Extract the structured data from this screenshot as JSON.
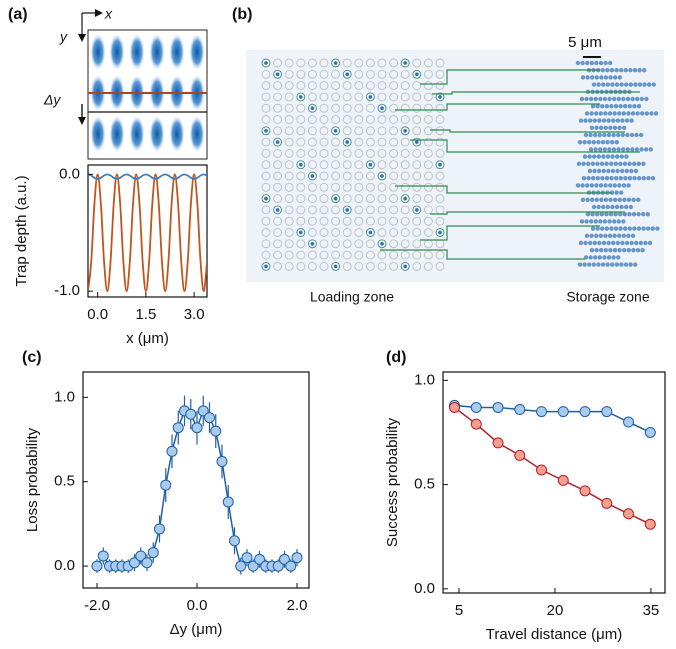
{
  "panels": {
    "a": {
      "label": "(a)",
      "axis_x": "x",
      "axis_y": "y",
      "delta_y": "Δy"
    },
    "b": {
      "label": "(b)",
      "scale_bar": "5 μm",
      "loading_zone": "Loading zone",
      "storage_zone": "Storage zone"
    }
  },
  "chart_data": [
    {
      "type": "line",
      "smooth": true,
      "xlabel": "x (μm)",
      "ylabel": "Trap depth (a.u.)",
      "x": [
        -0.3,
        -0.2,
        -0.1,
        0,
        0.1,
        0.2,
        0.3,
        0.4,
        0.5,
        0.6,
        0.7,
        0.8,
        0.9,
        1.0,
        1.1,
        1.2,
        1.3,
        1.4,
        1.5,
        1.6,
        1.7,
        1.8,
        1.9,
        2.0,
        2.1,
        2.2,
        2.3,
        2.4,
        2.5,
        2.6,
        2.7,
        2.8,
        2.9,
        3.0,
        3.1,
        3.2,
        3.3,
        3.4
      ],
      "series": [
        {
          "color": "#c2541a",
          "values": [
            -1,
            -0.75,
            -0.25,
            0,
            -0.25,
            -0.75,
            -1,
            -0.75,
            -0.25,
            0,
            -0.25,
            -0.75,
            -1,
            -0.75,
            -0.25,
            0,
            -0.25,
            -0.75,
            -1,
            -0.75,
            -0.25,
            0,
            -0.25,
            -0.75,
            -1,
            -0.75,
            -0.25,
            0,
            -0.25,
            -0.75,
            -1,
            -0.75,
            -0.25,
            0,
            -0.25,
            -0.75,
            -1,
            -0.75
          ]
        },
        {
          "color": "#3a7dc0",
          "values": [
            0,
            -0.01,
            -0.03,
            -0.04,
            -0.03,
            -0.01,
            0,
            -0.01,
            -0.03,
            -0.04,
            -0.03,
            -0.01,
            0,
            -0.01,
            -0.03,
            -0.04,
            -0.03,
            -0.01,
            0,
            -0.01,
            -0.03,
            -0.04,
            -0.03,
            -0.01,
            0,
            -0.01,
            -0.03,
            -0.04,
            -0.03,
            -0.01,
            0,
            -0.01,
            -0.03,
            -0.04,
            -0.03,
            -0.01,
            0,
            -0.01
          ]
        }
      ],
      "xlim": [
        -0.3,
        3.4
      ],
      "ylim": [
        -1.05,
        0.08
      ],
      "xticks": [
        {
          "value": 0,
          "label": "0.0"
        },
        {
          "value": 1.5,
          "label": "1.5"
        },
        {
          "value": 3,
          "label": "3.0"
        }
      ],
      "yticks": [
        {
          "value": -1,
          "label": "-1.0"
        },
        {
          "value": 0,
          "label": "0.0"
        }
      ]
    },
    {
      "type": "scatter",
      "panel_label": "(c)",
      "xlabel": "Δy (μm)",
      "ylabel": "Loss probability",
      "x": [
        -2,
        -1.875,
        -1.75,
        -1.625,
        -1.5,
        -1.375,
        -1.25,
        -1.125,
        -1,
        -0.875,
        -0.75,
        -0.625,
        -0.5,
        -0.375,
        -0.25,
        -0.125,
        0,
        0.125,
        0.25,
        0.375,
        0.5,
        0.625,
        0.75,
        0.875,
        1,
        1.125,
        1.25,
        1.375,
        1.5,
        1.625,
        1.75,
        1.875,
        2
      ],
      "series": [
        {
          "color": "#1f5fa6",
          "fill": "#a9cbee",
          "values": [
            0,
            0.06,
            0,
            0,
            0,
            0,
            0.02,
            0.06,
            0.02,
            0.08,
            0.22,
            0.48,
            0.68,
            0.82,
            0.92,
            0.9,
            0.82,
            0.92,
            0.88,
            0.8,
            0.62,
            0.38,
            0.15,
            0,
            0.05,
            0,
            0.04,
            0,
            0,
            0,
            0.04,
            0,
            0.05
          ],
          "errors": [
            0.04,
            0.05,
            0.04,
            0.04,
            0.04,
            0.04,
            0.05,
            0.05,
            0.05,
            0.06,
            0.08,
            0.1,
            0.1,
            0.1,
            0.09,
            0.09,
            0.1,
            0.09,
            0.09,
            0.1,
            0.1,
            0.1,
            0.08,
            0.05,
            0.05,
            0.04,
            0.05,
            0.04,
            0.04,
            0.04,
            0.05,
            0.04,
            0.05
          ]
        }
      ],
      "xlim": [
        -2.28,
        2.24
      ],
      "ylim": [
        -0.13,
        1.15
      ],
      "xticks": [
        {
          "value": -2,
          "label": "-2.0"
        },
        {
          "value": 0,
          "label": "0.0"
        },
        {
          "value": 2,
          "label": "2.0"
        }
      ],
      "yticks": [
        {
          "value": 0,
          "label": "0.0"
        },
        0.5,
        {
          "value": 1,
          "label": "1.0"
        }
      ]
    },
    {
      "type": "scatter",
      "panel_label": "(d)",
      "xlabel": "Travel distance (μm)",
      "ylabel": "Success probability",
      "x": [
        4.3,
        7.7,
        11.1,
        14.5,
        17.9,
        21.3,
        24.7,
        28.1,
        31.5,
        34.9
      ],
      "series": [
        {
          "color": "#1f5fa6",
          "fill": "#a9cbee",
          "values": [
            0.88,
            0.87,
            0.87,
            0.86,
            0.85,
            0.85,
            0.85,
            0.85,
            0.8,
            0.75
          ]
        },
        {
          "color": "#b3202a",
          "fill": "#f4a08c",
          "values": [
            0.87,
            0.79,
            0.7,
            0.64,
            0.57,
            0.52,
            0.47,
            0.41,
            0.36,
            0.31
          ]
        }
      ],
      "xlim": [
        2.5,
        37.2
      ],
      "ylim": [
        -0.02,
        1.04
      ],
      "xticks": [
        5,
        20,
        35
      ],
      "yticks": [
        {
          "value": 0,
          "label": "0.0"
        },
        0.5,
        {
          "value": 1,
          "label": "1.0"
        }
      ]
    }
  ]
}
